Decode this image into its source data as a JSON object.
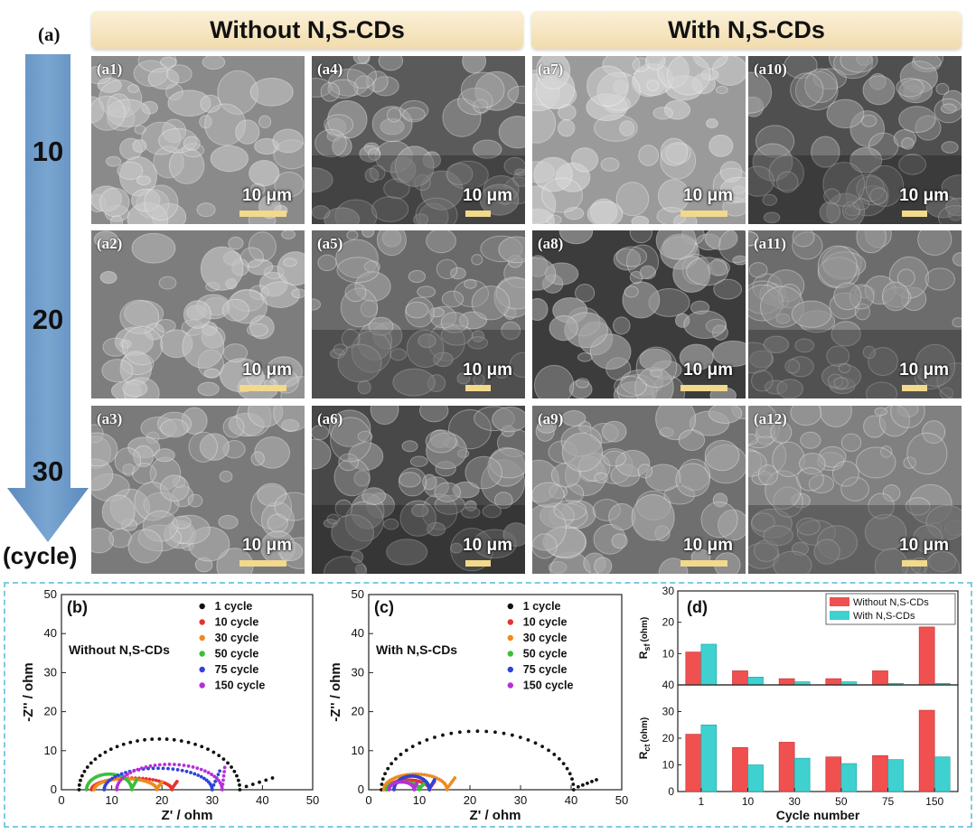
{
  "figure": {
    "panel_a_label": "(a)",
    "headers": [
      "Without N,S-CDs",
      "With N,S-CDs"
    ],
    "cycle_axis": {
      "ticks": [
        "10",
        "20",
        "30"
      ],
      "unit": "(cycle)"
    },
    "colors": {
      "header_fill": "#f4e2b8",
      "arrow": "#6f9cc8",
      "scale_bar": "#f2d98c",
      "dashed_border": "#7ecbe3"
    },
    "sem_images": [
      {
        "label": "(a1)",
        "scale": "10 μm"
      },
      {
        "label": "(a4)",
        "scale": "10 μm"
      },
      {
        "label": "(a7)",
        "scale": "10 μm"
      },
      {
        "label": "(a10)",
        "scale": "10 μm"
      },
      {
        "label": "(a2)",
        "scale": "10 μm"
      },
      {
        "label": "(a5)",
        "scale": "10 μm"
      },
      {
        "label": "(a8)",
        "scale": "10 μm"
      },
      {
        "label": "(a11)",
        "scale": "10 μm"
      },
      {
        "label": "(a3)",
        "scale": "10 μm"
      },
      {
        "label": "(a6)",
        "scale": "10 μm"
      },
      {
        "label": "(a9)",
        "scale": "10 μm"
      },
      {
        "label": "(a12)",
        "scale": "10 μm"
      }
    ]
  },
  "chart_data": [
    {
      "panel": "(b)",
      "type": "scatter",
      "annotation": "Without N,S-CDs",
      "xlabel": "Z' / ohm",
      "ylabel": "-Z'' / ohm",
      "xlim": [
        0,
        50
      ],
      "ylim": [
        0,
        50
      ],
      "xticks": [
        0,
        10,
        20,
        30,
        40,
        50
      ],
      "yticks": [
        0,
        10,
        20,
        30,
        40,
        50
      ],
      "legend_position": "top-right",
      "series": [
        {
          "name": "1 cycle",
          "color": "#111111",
          "x0": 3.5,
          "x1": 35.5,
          "peak": 13.0,
          "tail_x": 42.0,
          "tail_y": 3.0
        },
        {
          "name": "10 cycle",
          "color": "#e8312f",
          "x0": 6.0,
          "x1": 22.0,
          "peak": 3.0,
          "tail_x": 23.0,
          "tail_y": 2.0
        },
        {
          "name": "30 cycle",
          "color": "#f08a1c",
          "x0": 6.5,
          "x1": 19.0,
          "peak": 2.8,
          "tail_x": 20.0,
          "tail_y": 1.8
        },
        {
          "name": "50 cycle",
          "color": "#3bbf3b",
          "x0": 5.0,
          "x1": 14.0,
          "peak": 4.0,
          "tail_x": 15.0,
          "tail_y": 2.5
        },
        {
          "name": "75 cycle",
          "color": "#2f43d8",
          "x0": 8.5,
          "x1": 30.0,
          "peak": 5.5,
          "tail_x": 31.5,
          "tail_y": 5.0
        },
        {
          "name": "150 cycle",
          "color": "#b62fd8",
          "x0": 11.0,
          "x1": 32.0,
          "peak": 6.5,
          "tail_x": 32.5,
          "tail_y": 6.0
        }
      ]
    },
    {
      "panel": "(c)",
      "type": "scatter",
      "annotation": "With N,S-CDs",
      "xlabel": "Z' / ohm",
      "ylabel": "-Z'' / ohm",
      "xlim": [
        0,
        50
      ],
      "ylim": [
        0,
        50
      ],
      "xticks": [
        0,
        10,
        20,
        30,
        40,
        50
      ],
      "yticks": [
        0,
        10,
        20,
        30,
        40,
        50
      ],
      "legend_position": "top-right",
      "series": [
        {
          "name": "1 cycle",
          "color": "#111111",
          "x0": 2.5,
          "x1": 40.5,
          "peak": 15.0,
          "tail_x": 45.0,
          "tail_y": 2.5
        },
        {
          "name": "10 cycle",
          "color": "#e8312f",
          "x0": 3.5,
          "x1": 12.0,
          "peak": 2.5,
          "tail_x": 13.0,
          "tail_y": 2.0
        },
        {
          "name": "30 cycle",
          "color": "#f08a1c",
          "x0": 3.0,
          "x1": 15.5,
          "peak": 4.0,
          "tail_x": 17.0,
          "tail_y": 3.0
        },
        {
          "name": "50 cycle",
          "color": "#3bbf3b",
          "x0": 3.5,
          "x1": 10.0,
          "peak": 2.0,
          "tail_x": 11.0,
          "tail_y": 1.5
        },
        {
          "name": "75 cycle",
          "color": "#2f43d8",
          "x0": 5.0,
          "x1": 12.0,
          "peak": 3.5,
          "tail_x": 13.0,
          "tail_y": 2.5
        },
        {
          "name": "150 cycle",
          "color": "#b62fd8",
          "x0": 4.0,
          "x1": 9.0,
          "peak": 2.0,
          "tail_x": 9.5,
          "tail_y": 1.5
        }
      ]
    },
    {
      "panel": "(d)",
      "type": "bar",
      "xlabel": "Cycle number",
      "categories": [
        "1",
        "10",
        "30",
        "50",
        "75",
        "150"
      ],
      "legend_position": "top-right",
      "series_names": [
        "Without N,S-CDs",
        "With N,S-CDs"
      ],
      "series_colors": [
        "#f05050",
        "#3fd0d0"
      ],
      "top": {
        "ylabel_main": "R",
        "ylabel_sub": "sf",
        "ylabel_unit": "(ohm)",
        "ylim": [
          0,
          30
        ],
        "ytick_labels": [
          "40",
          "10",
          "20",
          "30"
        ],
        "without": [
          10.5,
          4.5,
          2.0,
          2.0,
          4.5,
          18.5
        ],
        "with": [
          13.0,
          2.5,
          1.0,
          1.0,
          0.5,
          0.5
        ]
      },
      "bottom": {
        "ylabel_main": "R",
        "ylabel_sub": "ct",
        "ylabel_unit": "(ohm)",
        "ylim": [
          0,
          40
        ],
        "ytick_labels": [
          "0",
          "10",
          "20",
          "30"
        ],
        "without": [
          21.5,
          16.5,
          18.5,
          13.0,
          13.5,
          30.5
        ],
        "with": [
          25.0,
          10.0,
          12.5,
          10.5,
          12.0,
          13.0
        ]
      }
    }
  ]
}
